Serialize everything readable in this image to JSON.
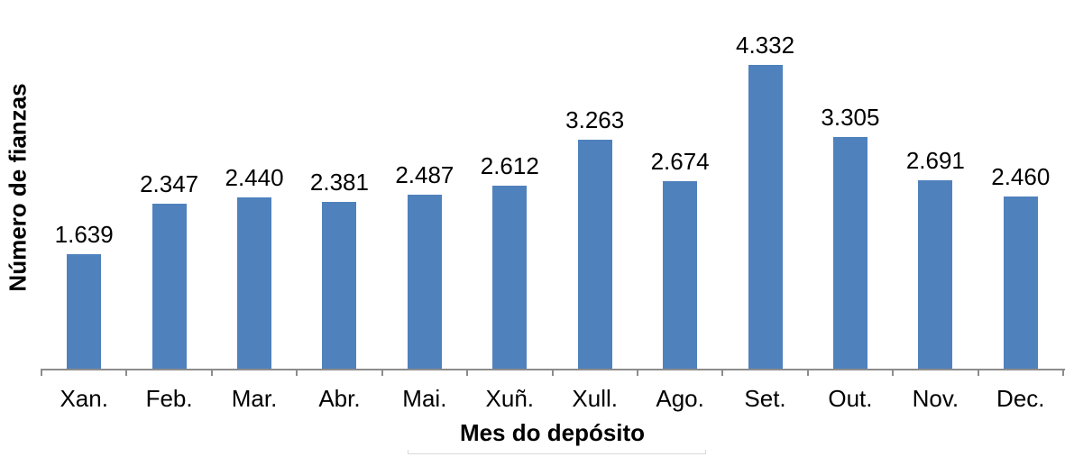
{
  "chart_data": {
    "type": "bar",
    "title": "",
    "xlabel": "Mes do depósito",
    "ylabel": "Número de fianzas",
    "categories": [
      "Xan.",
      "Feb.",
      "Mar.",
      "Abr.",
      "Mai.",
      "Xuñ.",
      "Xull.",
      "Ago.",
      "Set.",
      "Out.",
      "Nov.",
      "Dec."
    ],
    "values": [
      1639,
      2347,
      2440,
      2381,
      2487,
      2612,
      3263,
      2674,
      4332,
      3305,
      2691,
      2460
    ],
    "data_labels": [
      "1.639",
      "2.347",
      "2.440",
      "2.381",
      "2.487",
      "2.612",
      "3.263",
      "2.674",
      "4.332",
      "3.305",
      "2.691",
      "2.460"
    ],
    "ylim": [
      0,
      4500
    ],
    "grid": false,
    "legend": false,
    "y_axis_line_visible": false,
    "colors": {
      "bar": "#4f81bd",
      "axis": "#8c8c8c",
      "text": "#000000",
      "background": "#ffffff",
      "artifact": "#d9d9d9"
    }
  }
}
